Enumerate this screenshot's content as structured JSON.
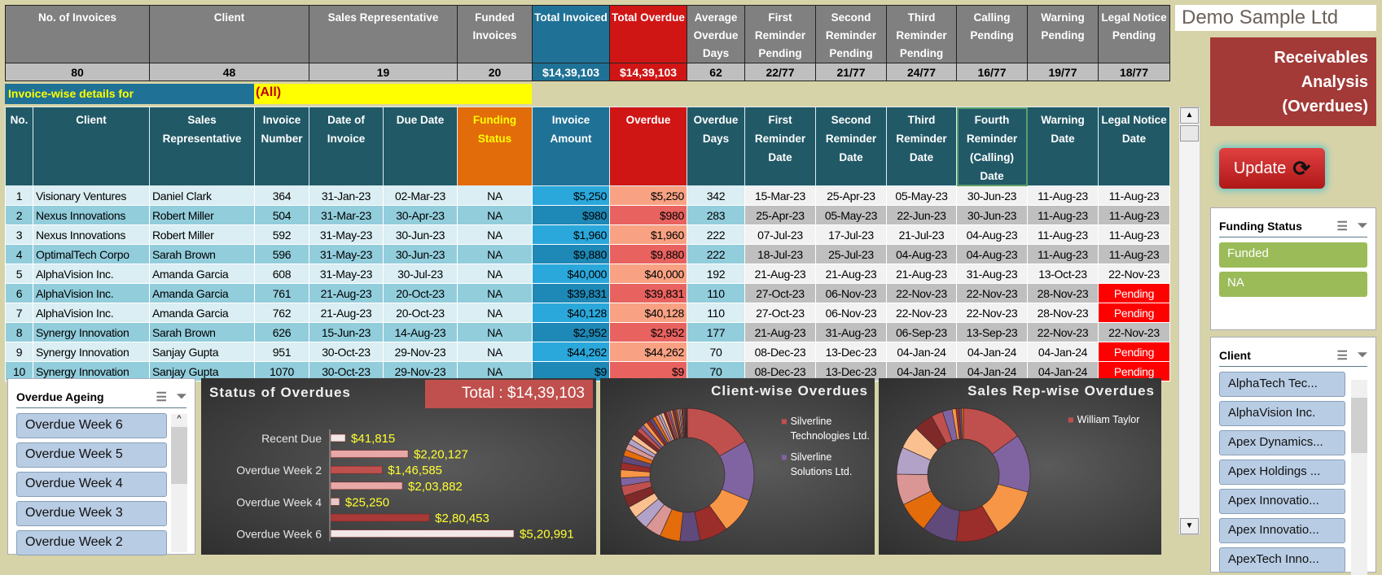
{
  "summary": {
    "headers": [
      "No. of Invoices",
      "Client",
      "Sales Representative",
      "Funded Invoices",
      "Total Invoiced",
      "Total Overdue",
      "Average Overdue Days",
      "First Reminder Pending",
      "Second Reminder Pending",
      "Third Reminder Pending",
      "Calling Pending",
      "Warning Pending",
      "Legal Notice Pending"
    ],
    "values": [
      "80",
      "48",
      "19",
      "20",
      "$14,39,103",
      "$14,39,103",
      "62",
      "22/77",
      "21/77",
      "24/77",
      "16/77",
      "19/77",
      "18/77"
    ]
  },
  "filter": {
    "label": "Invoice-wise details for",
    "value": "(All)"
  },
  "detail": {
    "headers": [
      "No.",
      "Client",
      "Sales Representative",
      "Invoice Number",
      "Date of Invoice",
      "Due Date",
      "Funding Status",
      "Invoice Amount",
      "Overdue",
      "Overdue Days",
      "First Reminder Date",
      "Second Reminder Date",
      "Third Reminder Date",
      "Fourth Reminder (Calling) Date",
      "Warning Date",
      "Legal Notice Date"
    ],
    "rows": [
      [
        "1",
        "Visionary Ventures",
        "Daniel Clark",
        "364",
        "31-Jan-23",
        "02-Mar-23",
        "NA",
        "$5,250",
        "$5,250",
        "342",
        "15-Mar-23",
        "25-Apr-23",
        "05-May-23",
        "30-Jun-23",
        "11-Aug-23",
        "11-Aug-23"
      ],
      [
        "2",
        "Nexus Innovations",
        "Robert Miller",
        "504",
        "31-Mar-23",
        "30-Apr-23",
        "NA",
        "$980",
        "$980",
        "283",
        "25-Apr-23",
        "05-May-23",
        "22-Jun-23",
        "30-Jun-23",
        "11-Aug-23",
        "11-Aug-23"
      ],
      [
        "3",
        "Nexus Innovations",
        "Robert Miller",
        "592",
        "31-May-23",
        "30-Jun-23",
        "NA",
        "$1,960",
        "$1,960",
        "222",
        "07-Jul-23",
        "17-Jul-23",
        "21-Jul-23",
        "04-Aug-23",
        "11-Aug-23",
        "11-Aug-23"
      ],
      [
        "4",
        "OptimalTech Corpo",
        "Sarah Brown",
        "596",
        "31-May-23",
        "30-Jun-23",
        "NA",
        "$9,880",
        "$9,880",
        "222",
        "18-Jul-23",
        "25-Jul-23",
        "04-Aug-23",
        "04-Aug-23",
        "11-Aug-23",
        "11-Aug-23"
      ],
      [
        "5",
        "AlphaVision Inc.",
        "Amanda Garcia",
        "608",
        "31-May-23",
        "30-Jul-23",
        "NA",
        "$40,000",
        "$40,000",
        "192",
        "21-Aug-23",
        "21-Aug-23",
        "21-Aug-23",
        "31-Aug-23",
        "13-Oct-23",
        "22-Nov-23"
      ],
      [
        "6",
        "AlphaVision Inc.",
        "Amanda Garcia",
        "761",
        "21-Aug-23",
        "20-Oct-23",
        "NA",
        "$39,831",
        "$39,831",
        "110",
        "27-Oct-23",
        "06-Nov-23",
        "22-Nov-23",
        "22-Nov-23",
        "28-Nov-23",
        "Pending"
      ],
      [
        "7",
        "AlphaVision Inc.",
        "Amanda Garcia",
        "762",
        "21-Aug-23",
        "20-Oct-23",
        "NA",
        "$40,128",
        "$40,128",
        "110",
        "27-Oct-23",
        "06-Nov-23",
        "22-Nov-23",
        "22-Nov-23",
        "28-Nov-23",
        "Pending"
      ],
      [
        "8",
        "Synergy Innovation",
        "Sarah Brown",
        "626",
        "15-Jun-23",
        "14-Aug-23",
        "NA",
        "$2,952",
        "$2,952",
        "177",
        "21-Aug-23",
        "31-Aug-23",
        "06-Sep-23",
        "13-Sep-23",
        "22-Nov-23",
        "22-Nov-23"
      ],
      [
        "9",
        "Synergy Innovation",
        "Sanjay Gupta",
        "951",
        "30-Oct-23",
        "29-Nov-23",
        "NA",
        "$44,262",
        "$44,262",
        "70",
        "08-Dec-23",
        "13-Dec-23",
        "04-Jan-24",
        "04-Jan-24",
        "04-Jan-24",
        "Pending"
      ],
      [
        "10",
        "Synergy Innovation",
        "Sanjay Gupta",
        "1070",
        "30-Oct-23",
        "29-Nov-23",
        "NA",
        "$9",
        "$9",
        "70",
        "08-Dec-23",
        "13-Dec-23",
        "04-Jan-24",
        "04-Jan-24",
        "04-Jan-24",
        "Pending"
      ]
    ]
  },
  "brand": {
    "company": "Demo Sample Ltd",
    "title": "Receivables Analysis (Overdues)",
    "update": "Update"
  },
  "slicers": {
    "funding": {
      "title": "Funding Status",
      "items": [
        "Funded",
        "NA"
      ]
    },
    "client": {
      "title": "Client",
      "items": [
        "AlphaTech Tec...",
        "AlphaVision Inc.",
        "Apex Dynamics...",
        "Apex Holdings ...",
        "Apex Innovatio...",
        "Apex Innovatio...",
        "ApexTech Inno..."
      ]
    },
    "ageing": {
      "title": "Overdue Ageing",
      "items": [
        "Overdue Week 6",
        "Overdue Week 5",
        "Overdue Week 4",
        "Overdue Week 3",
        "Overdue Week 2"
      ]
    }
  },
  "colors": {
    "palette": [
      "#c0504d",
      "#8064a2",
      "#f79646",
      "#9b2d2a",
      "#604a7b",
      "#e46c0a",
      "#d99694",
      "#b3a2c7",
      "#fac090",
      "#7f2a28"
    ]
  },
  "chart_data": [
    {
      "type": "bar",
      "title": "Status of Overdues",
      "total_label": "Total : $14,39,103",
      "categories": [
        "Recent Due",
        "",
        "Overdue Week 2",
        "",
        "Overdue Week 4",
        "",
        "Overdue Week 6"
      ],
      "values": [
        41815,
        220127,
        146585,
        203882,
        25250,
        280453,
        520991
      ],
      "labels": [
        "$41,815",
        "$2,20,127",
        "$1,46,585",
        "$2,03,882",
        "$25,250",
        "$2,80,453",
        "$5,20,991"
      ]
    },
    {
      "type": "pie",
      "title": "Client-wise Overdues",
      "legend": [
        "Silverline Technologies Ltd.",
        "Silverline Solutions Ltd."
      ],
      "values": [
        17,
        15,
        9,
        7,
        5,
        5,
        4,
        3.5,
        3,
        3,
        2.5,
        2,
        2,
        1.8,
        1.7,
        1.6,
        1.5,
        1.4,
        1.3,
        1.2,
        1.1,
        1,
        1,
        0.9,
        0.9,
        0.8,
        0.8,
        0.7,
        0.7,
        0.6,
        0.6,
        0.5,
        0.5,
        0.5,
        0.4,
        0.4,
        0.4,
        0.3,
        0.3,
        0.3,
        0.3,
        0.2,
        0.2,
        0.2,
        0.2
      ]
    },
    {
      "type": "pie",
      "title": "Sales Rep-wise Overdues",
      "legend": [
        "William Taylor"
      ],
      "values": [
        16,
        15,
        13,
        11,
        9,
        8,
        8,
        7,
        6,
        5,
        3,
        2.5,
        1,
        0.8,
        0.6,
        0.5
      ]
    }
  ]
}
